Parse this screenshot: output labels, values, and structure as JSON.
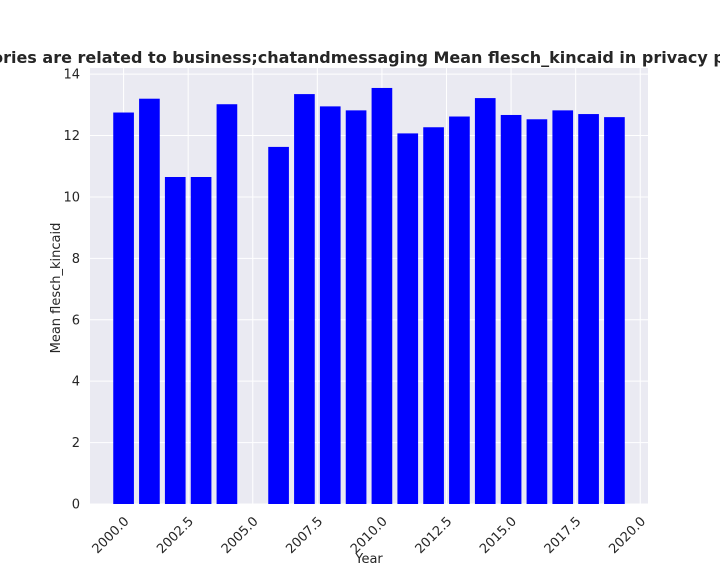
{
  "chart_data": {
    "type": "bar",
    "title": "categories are related to business;chatandmessaging Mean flesch_kincaid in privacy policies",
    "xlabel": "Year",
    "ylabel": "Mean flesch_kincaid",
    "x": [
      2000,
      2001,
      2002,
      2003,
      2004,
      2006,
      2007,
      2008,
      2009,
      2010,
      2011,
      2012,
      2013,
      2014,
      2015,
      2016,
      2017,
      2018,
      2019
    ],
    "values": [
      12.75,
      13.2,
      10.65,
      10.65,
      13.02,
      11.63,
      13.35,
      12.95,
      12.82,
      13.55,
      12.07,
      12.27,
      12.62,
      13.22,
      12.67,
      12.53,
      12.82,
      12.7,
      12.6
    ],
    "xlim": [
      1998.7,
      2020.3
    ],
    "ylim": [
      0,
      14.2
    ],
    "xticks": [
      "2000.0",
      "2002.5",
      "2005.0",
      "2007.5",
      "2010.0",
      "2012.5",
      "2015.0",
      "2017.5",
      "2020.0"
    ],
    "xtick_values": [
      2000,
      2002.5,
      2005,
      2007.5,
      2010,
      2012.5,
      2015,
      2017.5,
      2020
    ],
    "yticks": [
      "0",
      "2",
      "4",
      "6",
      "8",
      "10",
      "12",
      "14"
    ],
    "ytick_values": [
      0,
      2,
      4,
      6,
      8,
      10,
      12,
      14
    ],
    "grid": true,
    "bar_color": "#0000ff",
    "background_color": "#eaeaf2",
    "grid_color": "#ffffff"
  }
}
